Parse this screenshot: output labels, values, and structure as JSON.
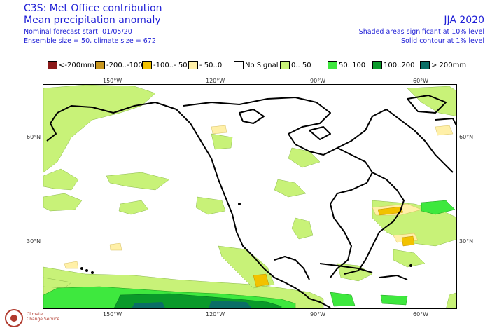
{
  "header": {
    "title": "C3S: Met Office contribution",
    "subtitle": "Mean precipitation anomaly",
    "forecast_start": "Nominal forecast start: 01/05/20",
    "ensemble": "Ensemble size = 50, climate size = 672",
    "season": "JJA 2020",
    "shaded_note": "Shaded areas significant at 10% level",
    "contour_note": "Solid contour at 1% level"
  },
  "legend": [
    {
      "label": "<-200mm",
      "color": "#8b1a1a"
    },
    {
      "label": "-200..-100",
      "color": "#c8961e"
    },
    {
      "label": "-100..- 50",
      "color": "#f2c200"
    },
    {
      "label": "- 50..0",
      "color": "#fff0a8"
    },
    {
      "label": "No Signal",
      "color": "#ffffff"
    },
    {
      "label": "0.. 50",
      "color": "#c8f278"
    },
    {
      "label": "50..100",
      "color": "#3ee83e"
    },
    {
      "label": "100..200",
      "color": "#0a9a2a"
    },
    {
      "label": "> 200mm",
      "color": "#0a6e66"
    }
  ],
  "axes": {
    "lon_ticks": [
      "150°W",
      "120°W",
      "90°W",
      "60°W"
    ],
    "lat_ticks": [
      "60°N",
      "30°N"
    ]
  },
  "logo_text": {
    "line1": "Climate",
    "line2": "Change Service"
  }
}
